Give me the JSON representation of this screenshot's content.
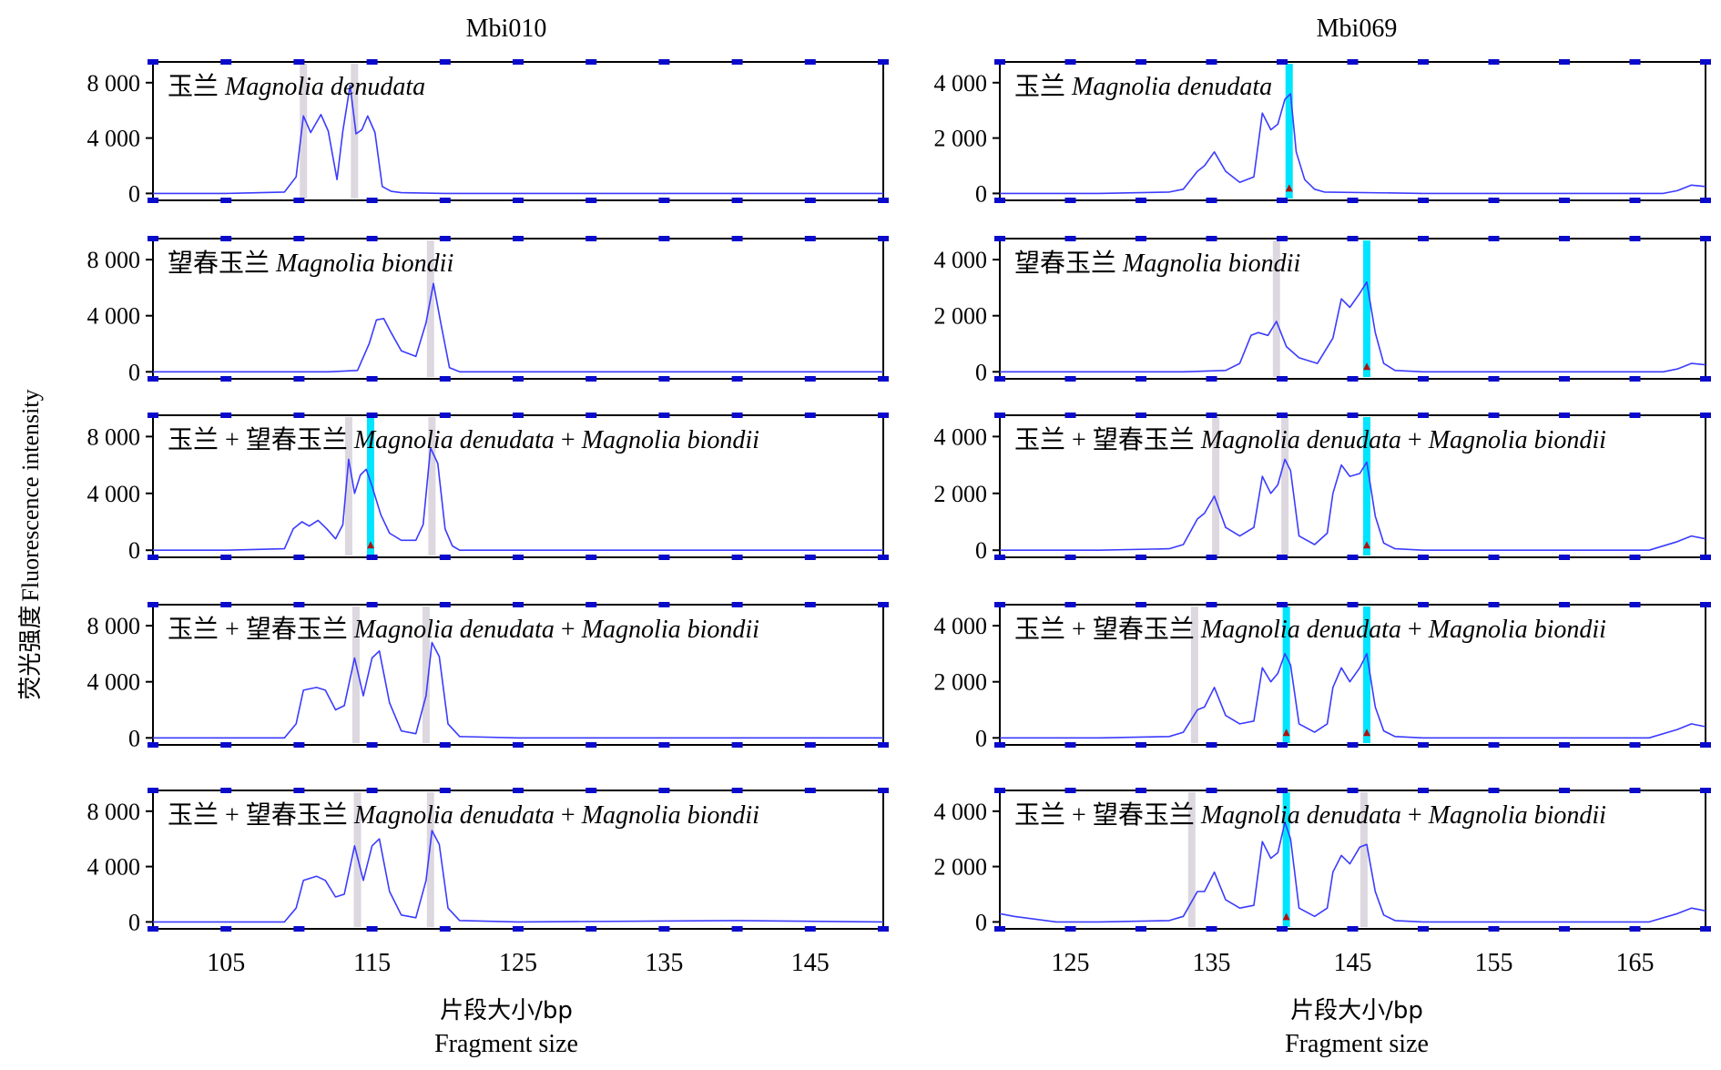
{
  "colors": {
    "trace": "#3b3bff",
    "frame": "#000000",
    "tick_marker": "#0a0acc",
    "bin_highlight": "#00e5ff",
    "bin_grey": "#ddd7e0",
    "noise_mark": "#e01818",
    "peak_triangle": "#b01010"
  },
  "y_axis_label": {
    "cn": "荧光强度",
    "en": "Fluorescence intensity"
  },
  "columns": [
    {
      "title": "Mbi010",
      "xlabel_cn": "片段大小/bp",
      "xlabel_en": "Fragment size",
      "x_ticks": [
        "105",
        "115",
        "125",
        "135",
        "145"
      ],
      "y_ticks": [
        "8 000",
        "4 000",
        "0"
      ]
    },
    {
      "title": "Mbi069",
      "xlabel_cn": "片段大小/bp",
      "xlabel_en": "Fragment size",
      "x_ticks": [
        "125",
        "135",
        "145",
        "155",
        "165"
      ],
      "y_ticks": [
        "4 000",
        "2 000",
        "0"
      ]
    }
  ],
  "panel_labels": [
    [
      {
        "cn": "玉兰",
        "sep": "",
        "cn2": "",
        "latin": "Magnolia denudata",
        "plus": "",
        "latin2": ""
      },
      {
        "cn": "望春玉兰",
        "sep": "",
        "cn2": "",
        "latin": "Magnolia biondii",
        "plus": "",
        "latin2": ""
      },
      {
        "cn": "玉兰",
        "sep": "+",
        "cn2": "望春玉兰",
        "latin": "Magnolia denudata",
        "plus": "+",
        "latin2": "Magnolia biondii"
      },
      {
        "cn": "玉兰",
        "sep": "+",
        "cn2": "望春玉兰",
        "latin": "Magnolia denudata",
        "plus": "+",
        "latin2": "Magnolia biondii"
      },
      {
        "cn": "玉兰",
        "sep": "+",
        "cn2": "望春玉兰",
        "latin": "Magnolia denudata",
        "plus": "+",
        "latin2": "Magnolia biondii"
      }
    ],
    [
      {
        "cn": "玉兰",
        "sep": "",
        "cn2": "",
        "latin": "Magnolia denudata",
        "plus": "",
        "latin2": ""
      },
      {
        "cn": "望春玉兰",
        "sep": "",
        "cn2": "",
        "latin": "Magnolia biondii",
        "plus": "",
        "latin2": ""
      },
      {
        "cn": "玉兰",
        "sep": "+",
        "cn2": "望春玉兰",
        "latin": "Magnolia denudata",
        "plus": "+",
        "latin2": "Magnolia biondii"
      },
      {
        "cn": "玉兰",
        "sep": "+",
        "cn2": "望春玉兰",
        "latin": "Magnolia denudata",
        "plus": "+",
        "latin2": "Magnolia biondii"
      },
      {
        "cn": "玉兰",
        "sep": "+",
        "cn2": "望春玉兰",
        "latin": "Magnolia denudata",
        "plus": "+",
        "latin2": "Magnolia biondii"
      }
    ]
  ],
  "chart_data": [
    {
      "type": "line",
      "title": "Mbi010",
      "xlabel": "片段大小/bp Fragment size",
      "ylabel": "荧光强度 Fluorescence intensity",
      "xlim": [
        100,
        150
      ],
      "ylim": [
        -500,
        9500
      ],
      "panels": [
        {
          "name": "玉兰 Magnolia denudata",
          "x": [
            100,
            105,
            109,
            109.8,
            110.3,
            110.8,
            111.5,
            112,
            112.6,
            113,
            113.5,
            113.9,
            114.3,
            114.7,
            115.2,
            115.7,
            116.3,
            117,
            120,
            130,
            140,
            150
          ],
          "y": [
            0,
            0,
            100,
            1200,
            5600,
            4400,
            5700,
            4500,
            1000,
            4500,
            7800,
            4300,
            4600,
            5600,
            4400,
            500,
            150,
            50,
            0,
            0,
            0,
            0
          ],
          "bins_grey": [
            110.3,
            113.8
          ],
          "bins_highlight": [],
          "peaks_called": []
        },
        {
          "name": "望春玉兰 Magnolia biondii",
          "x": [
            100,
            112,
            114,
            114.8,
            115.3,
            115.8,
            116.3,
            117,
            118,
            118.7,
            119.2,
            119.7,
            120.3,
            121,
            125,
            150
          ],
          "y": [
            0,
            0,
            100,
            2000,
            3700,
            3800,
            2800,
            1500,
            1100,
            3500,
            6300,
            3500,
            300,
            0,
            0,
            0
          ],
          "bins_grey": [
            119.0
          ],
          "bins_highlight": [],
          "peaks_called": []
        },
        {
          "name": "玉兰 + 望春玉兰 Magnolia denudata + Magnolia biondii",
          "x": [
            100,
            105,
            109,
            109.6,
            110.2,
            110.7,
            111.3,
            111.9,
            112.5,
            113,
            113.4,
            113.8,
            114.2,
            114.6,
            115,
            115.6,
            116.2,
            117,
            118,
            118.5,
            119,
            119.5,
            120,
            120.5,
            121,
            125,
            150
          ],
          "y": [
            0,
            0,
            100,
            1500,
            2000,
            1700,
            2100,
            1500,
            800,
            1800,
            6400,
            4000,
            5300,
            5700,
            4500,
            2500,
            1200,
            700,
            700,
            1800,
            7200,
            6100,
            1500,
            300,
            0,
            0,
            0
          ],
          "bins_grey": [
            113.4,
            119.1
          ],
          "bins_highlight": [
            114.9
          ],
          "peaks_called": [
            114.9
          ]
        },
        {
          "name": "玉兰 + 望春玉兰 Magnolia denudata + Magnolia biondii",
          "x": [
            100,
            109,
            109.8,
            110.3,
            111.2,
            111.8,
            112.5,
            113.1,
            113.8,
            114.4,
            115,
            115.5,
            116.2,
            117,
            118,
            118.7,
            119.1,
            119.6,
            120.2,
            121,
            125,
            135,
            150
          ],
          "y": [
            0,
            0,
            1000,
            3400,
            3600,
            3400,
            2000,
            2300,
            5700,
            3000,
            5700,
            6200,
            2500,
            500,
            300,
            3000,
            6800,
            5800,
            1000,
            100,
            0,
            0,
            0
          ],
          "bins_grey": [
            113.9,
            118.7
          ],
          "bins_highlight": [],
          "peaks_called": []
        },
        {
          "name": "玉兰 + 望春玉兰 Magnolia denudata + Magnolia biondii",
          "x": [
            100,
            109,
            109.8,
            110.3,
            111.2,
            111.8,
            112.5,
            113.1,
            113.8,
            114.4,
            115,
            115.5,
            116.2,
            117,
            118,
            118.7,
            119.1,
            119.6,
            120.2,
            121,
            125,
            140,
            150
          ],
          "y": [
            0,
            0,
            1000,
            3000,
            3300,
            3000,
            1800,
            2000,
            5500,
            3000,
            5500,
            6000,
            2200,
            500,
            300,
            3000,
            6600,
            5600,
            1000,
            100,
            0,
            100,
            0
          ],
          "bins_grey": [
            114.0,
            119.0
          ],
          "bins_highlight": [],
          "peaks_called": []
        }
      ]
    },
    {
      "type": "line",
      "title": "Mbi069",
      "xlabel": "片段大小/bp Fragment size",
      "ylabel": "荧光强度 Fluorescence intensity",
      "xlim": [
        120,
        170
      ],
      "ylim": [
        -250,
        4750
      ],
      "panels": [
        {
          "name": "玉兰 Magnolia denudata",
          "x": [
            120,
            127,
            132,
            133,
            134,
            134.5,
            135.2,
            136,
            137,
            138,
            138.6,
            139.2,
            139.7,
            140.2,
            140.6,
            141,
            141.6,
            142.3,
            143,
            150,
            160,
            167,
            168,
            169,
            170
          ],
          "y": [
            0,
            0,
            50,
            150,
            800,
            1000,
            1500,
            800,
            400,
            600,
            2900,
            2300,
            2500,
            3400,
            3600,
            1500,
            500,
            150,
            50,
            0,
            0,
            0,
            100,
            300,
            250
          ],
          "bins_grey": [],
          "bins_highlight": [
            140.5
          ],
          "peaks_called": [
            140.5
          ]
        },
        {
          "name": "望春玉兰 Magnolia biondii",
          "x": [
            120,
            133,
            136,
            137,
            137.8,
            138.3,
            139,
            139.6,
            140.3,
            141.2,
            142.5,
            143.6,
            144.2,
            144.8,
            145.5,
            146,
            146.6,
            147.2,
            148,
            150,
            160,
            167,
            168,
            169,
            170
          ],
          "y": [
            0,
            0,
            50,
            300,
            1300,
            1400,
            1300,
            1800,
            900,
            500,
            300,
            1200,
            2600,
            2300,
            2800,
            3200,
            1400,
            300,
            50,
            0,
            0,
            0,
            100,
            300,
            250
          ],
          "bins_grey": [
            139.6
          ],
          "bins_highlight": [
            146.0
          ],
          "peaks_called": [
            146.0
          ]
        },
        {
          "name": "玉兰 + 望春玉兰 Magnolia denudata + Magnolia biondii",
          "x": [
            120,
            127,
            132,
            133,
            134,
            134.5,
            135.2,
            136,
            137,
            138,
            138.6,
            139.2,
            139.7,
            140.2,
            140.6,
            141.2,
            142.3,
            143.2,
            143.6,
            144.2,
            144.8,
            145.5,
            146,
            146.6,
            147.2,
            148,
            150,
            160,
            166,
            168,
            169,
            170
          ],
          "y": [
            0,
            0,
            50,
            200,
            1100,
            1300,
            1900,
            800,
            500,
            800,
            2600,
            2000,
            2300,
            3200,
            2800,
            500,
            200,
            600,
            2000,
            3000,
            2600,
            2700,
            3100,
            1200,
            250,
            50,
            0,
            0,
            0,
            300,
            500,
            400
          ],
          "bins_grey": [
            135.3,
            140.2
          ],
          "bins_highlight": [
            146.0
          ],
          "peaks_called": [
            146.0
          ]
        },
        {
          "name": "玉兰 + 望春玉兰 Magnolia denudata + Magnolia biondii",
          "x": [
            120,
            127,
            132,
            133,
            134,
            134.5,
            135.2,
            136,
            137,
            138,
            138.6,
            139.2,
            139.7,
            140.2,
            140.6,
            141.2,
            142.3,
            143.2,
            143.6,
            144.2,
            144.8,
            145.5,
            146,
            146.6,
            147.2,
            148,
            150,
            160,
            166,
            168,
            169,
            170
          ],
          "y": [
            0,
            0,
            50,
            200,
            1000,
            1100,
            1800,
            800,
            500,
            600,
            2500,
            2000,
            2300,
            3000,
            2600,
            500,
            200,
            500,
            1800,
            2500,
            2000,
            2500,
            3000,
            1100,
            250,
            50,
            0,
            0,
            0,
            300,
            500,
            400
          ],
          "bins_grey": [
            133.8
          ],
          "bins_highlight": [
            140.3,
            146.0
          ],
          "peaks_called": [
            140.3,
            146.0
          ]
        },
        {
          "name": "玉兰 + 望春玉兰 Magnolia denudata + Magnolia biondii",
          "x": [
            120,
            121,
            124,
            127,
            132,
            133,
            134,
            134.5,
            135.2,
            136,
            137,
            138,
            138.6,
            139.2,
            139.7,
            140.2,
            140.6,
            141.2,
            142.3,
            143.2,
            143.6,
            144.2,
            144.8,
            145.5,
            146,
            146.6,
            147.2,
            148,
            150,
            160,
            166,
            168,
            169,
            170
          ],
          "y": [
            300,
            200,
            0,
            0,
            50,
            200,
            1100,
            1100,
            1800,
            800,
            500,
            600,
            2900,
            2300,
            2500,
            3600,
            3000,
            500,
            200,
            500,
            1800,
            2400,
            2100,
            2700,
            2800,
            1100,
            250,
            50,
            0,
            0,
            0,
            300,
            500,
            400
          ],
          "bins_grey": [
            133.6,
            145.8
          ],
          "bins_highlight": [
            140.3
          ],
          "peaks_called": [
            140.3
          ]
        }
      ]
    }
  ]
}
